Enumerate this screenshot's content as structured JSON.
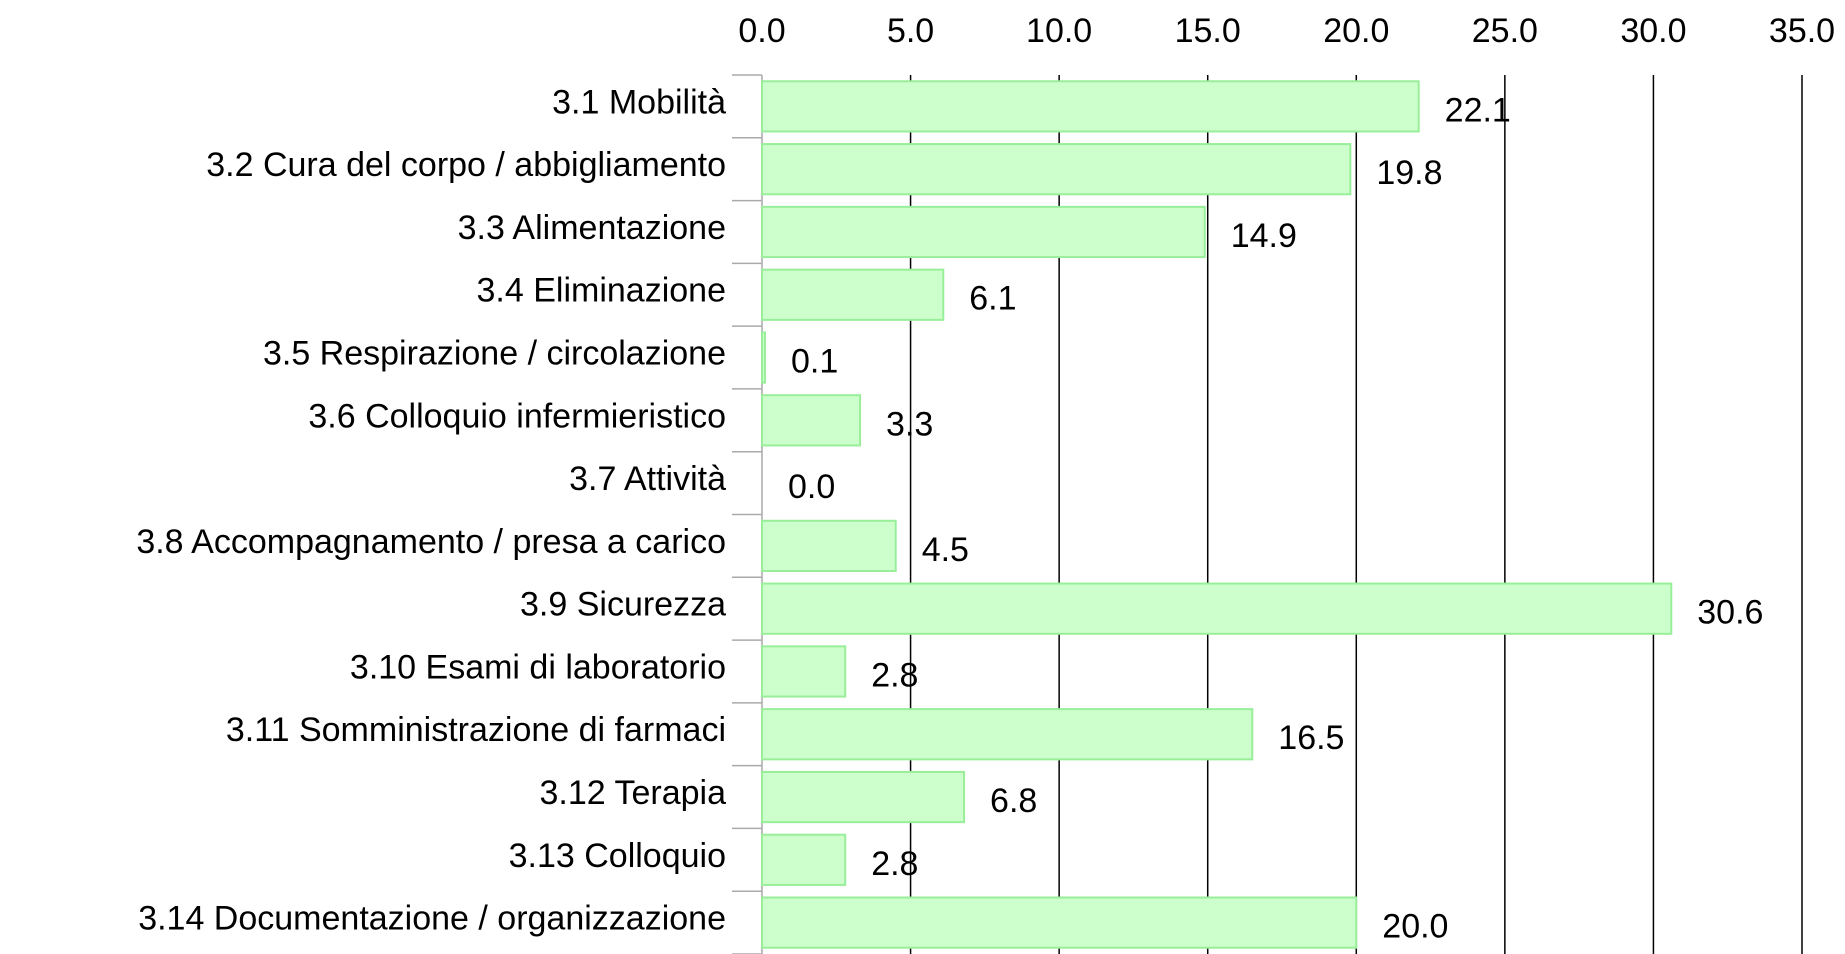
{
  "chart_data": {
    "type": "bar",
    "orientation": "horizontal",
    "categories": [
      "3.1 Mobilità",
      "3.2 Cura del corpo / abbigliamento",
      "3.3 Alimentazione",
      "3.4 Eliminazione",
      "3.5 Respirazione / circolazione",
      "3.6 Colloquio infermieristico",
      "3.7 Attività",
      "3.8 Accompagnamento / presa a carico",
      "3.9 Sicurezza",
      "3.10 Esami di laboratorio",
      "3.11 Somministrazione di farmaci",
      "3.12 Terapia",
      "3.13 Colloquio",
      "3.14 Documentazione / organizzazione"
    ],
    "values": [
      22.1,
      19.8,
      14.9,
      6.1,
      0.1,
      3.3,
      0,
      4.5,
      30.6,
      2.8,
      16.5,
      6.8,
      2.8,
      20
    ],
    "value_labels": [
      "22.1",
      "19.8",
      "14.9",
      "6.1",
      "0.1",
      "3.3",
      "0.0",
      "4.5",
      "30.6",
      "2.8",
      "16.5",
      "6.8",
      "2.8",
      "20.0"
    ],
    "color": "#ccffcc",
    "xlim": [
      0,
      35
    ],
    "xticks": [
      {
        "value": 0,
        "label": "0.0"
      },
      {
        "value": 5,
        "label": "5.0"
      },
      {
        "value": 10,
        "label": "10.0"
      },
      {
        "value": 15,
        "label": "15.0"
      },
      {
        "value": 20,
        "label": "20.0"
      },
      {
        "value": 25,
        "label": "25.0"
      },
      {
        "value": 30,
        "label": "30.0"
      },
      {
        "value": 35,
        "label": "35.0"
      }
    ],
    "grid": true
  }
}
